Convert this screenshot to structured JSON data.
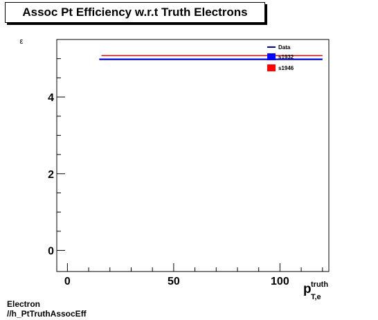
{
  "chart_data": {
    "type": "line",
    "title": "Assoc Pt Efficiency w.r.t Truth Electrons",
    "ylabel": "ε",
    "xlabel": {
      "main": "p",
      "sup": "truth",
      "sub": "T,e"
    },
    "xlim": [
      -5,
      123
    ],
    "ylim": [
      -0.55,
      5.5
    ],
    "x_ticks": [
      0,
      50,
      100
    ],
    "y_ticks": [
      0,
      2,
      4
    ],
    "legend_position": "top-right",
    "series": [
      {
        "name": "Data",
        "color": "#000099",
        "style": "line",
        "x": [
          15,
          120
        ],
        "y": [
          4.98,
          4.98
        ]
      },
      {
        "name": "s1932",
        "color": "#0000ff",
        "style": "fill",
        "x": [
          15,
          120
        ],
        "y": [
          4.99,
          4.99
        ]
      },
      {
        "name": "s1946",
        "color": "#ff0000",
        "style": "fill",
        "x": [
          16,
          120
        ],
        "y": [
          5.08,
          5.08
        ]
      }
    ]
  },
  "footer": {
    "line1": "Electron",
    "line2": "//h_PtTruthAssocEff"
  }
}
